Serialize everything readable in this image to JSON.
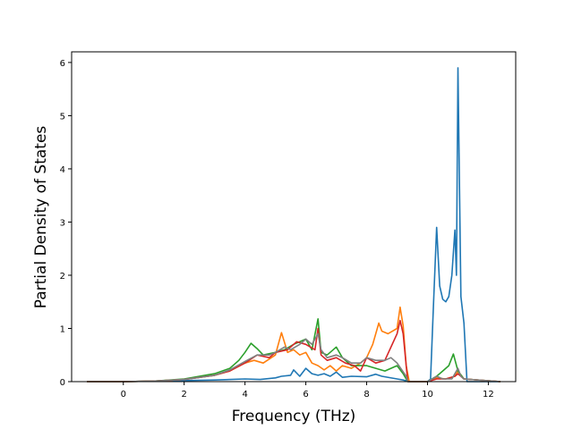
{
  "chart_data": {
    "type": "line",
    "title": "",
    "xlabel": "Frequency (THz)",
    "ylabel": "Partial Density of States",
    "xlim": [
      -1.7,
      12.9
    ],
    "ylim": [
      0,
      6.2
    ],
    "xticks": [
      0,
      2,
      4,
      6,
      8,
      10,
      12
    ],
    "yticks": [
      0,
      1,
      2,
      3,
      4,
      5,
      6
    ],
    "grid": false,
    "legend": "none",
    "series": [
      {
        "color": "#1f77b4",
        "x": [
          -1.2,
          0.0,
          1.0,
          2.0,
          3.0,
          4.0,
          4.5,
          5.0,
          5.2,
          5.5,
          5.6,
          5.8,
          6.0,
          6.2,
          6.4,
          6.6,
          6.8,
          7.0,
          7.2,
          7.5,
          8.0,
          8.3,
          8.5,
          9.0,
          9.2,
          9.4,
          9.6,
          10.0,
          10.1,
          10.2,
          10.3,
          10.4,
          10.5,
          10.6,
          10.7,
          10.8,
          10.9,
          10.95,
          11.0,
          11.1,
          11.2,
          11.3,
          11.5,
          12.0,
          12.4
        ],
        "y": [
          0,
          0,
          0.01,
          0.02,
          0.03,
          0.05,
          0.04,
          0.07,
          0.1,
          0.12,
          0.22,
          0.1,
          0.25,
          0.15,
          0.12,
          0.15,
          0.1,
          0.18,
          0.08,
          0.1,
          0.09,
          0.14,
          0.1,
          0.05,
          0.03,
          0.0,
          0.0,
          0.0,
          0.05,
          1.5,
          2.9,
          1.8,
          1.55,
          1.5,
          1.6,
          2.0,
          2.85,
          2.0,
          5.9,
          1.6,
          1.1,
          0.0,
          0,
          0,
          0
        ]
      },
      {
        "color": "#ff7f0e",
        "x": [
          -1.2,
          0.0,
          1.0,
          2.0,
          3.0,
          3.5,
          4.0,
          4.3,
          4.6,
          5.0,
          5.2,
          5.4,
          5.6,
          5.8,
          6.0,
          6.2,
          6.4,
          6.6,
          6.8,
          7.0,
          7.2,
          7.5,
          7.8,
          8.0,
          8.2,
          8.4,
          8.5,
          8.7,
          9.0,
          9.1,
          9.2,
          9.3,
          9.4,
          10.0,
          10.3,
          10.6,
          10.9,
          11.0,
          11.2,
          12.4
        ],
        "y": [
          0,
          0,
          0.01,
          0.04,
          0.12,
          0.2,
          0.35,
          0.4,
          0.35,
          0.5,
          0.92,
          0.55,
          0.6,
          0.5,
          0.55,
          0.35,
          0.3,
          0.22,
          0.3,
          0.2,
          0.3,
          0.25,
          0.35,
          0.45,
          0.7,
          1.1,
          0.95,
          0.9,
          1.0,
          1.4,
          1.05,
          0.3,
          0.0,
          0.0,
          0.07,
          0.05,
          0.1,
          0.2,
          0.05,
          0
        ]
      },
      {
        "color": "#2ca02c",
        "x": [
          -1.2,
          0.0,
          1.0,
          2.0,
          3.0,
          3.5,
          3.8,
          4.0,
          4.2,
          4.4,
          4.6,
          5.0,
          5.3,
          5.6,
          6.0,
          6.2,
          6.4,
          6.5,
          6.7,
          7.0,
          7.2,
          7.5,
          8.0,
          8.3,
          8.6,
          9.0,
          9.2,
          9.35,
          10.0,
          10.3,
          10.5,
          10.7,
          10.85,
          11.0,
          11.2,
          12.4
        ],
        "y": [
          0,
          0,
          0.01,
          0.05,
          0.15,
          0.25,
          0.4,
          0.55,
          0.72,
          0.62,
          0.5,
          0.55,
          0.6,
          0.7,
          0.8,
          0.6,
          1.18,
          0.55,
          0.5,
          0.65,
          0.45,
          0.3,
          0.3,
          0.25,
          0.2,
          0.3,
          0.15,
          0.0,
          0.0,
          0.1,
          0.2,
          0.3,
          0.52,
          0.2,
          0.05,
          0
        ]
      },
      {
        "color": "#d62728",
        "x": [
          -1.2,
          0.0,
          1.0,
          2.0,
          3.0,
          3.5,
          4.0,
          4.4,
          4.8,
          5.0,
          5.4,
          5.7,
          6.0,
          6.3,
          6.4,
          6.5,
          6.7,
          7.0,
          7.3,
          7.6,
          7.8,
          8.0,
          8.3,
          8.6,
          9.0,
          9.1,
          9.2,
          9.35,
          10.0,
          10.3,
          10.6,
          10.9,
          11.0,
          11.2,
          12.4
        ],
        "y": [
          0,
          0,
          0.01,
          0.04,
          0.12,
          0.2,
          0.35,
          0.5,
          0.45,
          0.55,
          0.6,
          0.75,
          0.7,
          0.6,
          1.0,
          0.5,
          0.4,
          0.45,
          0.35,
          0.3,
          0.2,
          0.45,
          0.35,
          0.4,
          0.9,
          1.15,
          0.9,
          0.0,
          0.0,
          0.05,
          0.05,
          0.1,
          0.15,
          0.05,
          0
        ]
      },
      {
        "color": "#7f7f7f",
        "x": [
          -1.2,
          0.0,
          1.0,
          2.0,
          3.0,
          3.5,
          4.0,
          4.4,
          4.8,
          5.0,
          5.3,
          5.5,
          5.8,
          6.0,
          6.2,
          6.4,
          6.5,
          6.7,
          7.0,
          7.2,
          7.5,
          7.8,
          8.0,
          8.3,
          8.6,
          8.8,
          9.0,
          9.3,
          9.35,
          10.0,
          10.3,
          10.5,
          10.8,
          11.0,
          11.1,
          11.2,
          12.4
        ],
        "y": [
          0,
          0,
          0.01,
          0.04,
          0.12,
          0.22,
          0.38,
          0.5,
          0.5,
          0.55,
          0.65,
          0.6,
          0.7,
          0.8,
          0.7,
          0.9,
          0.6,
          0.45,
          0.5,
          0.45,
          0.35,
          0.35,
          0.45,
          0.4,
          0.4,
          0.45,
          0.35,
          0.1,
          0.0,
          0.0,
          0.1,
          0.05,
          0.05,
          0.25,
          0.1,
          0.05,
          0
        ]
      }
    ]
  }
}
